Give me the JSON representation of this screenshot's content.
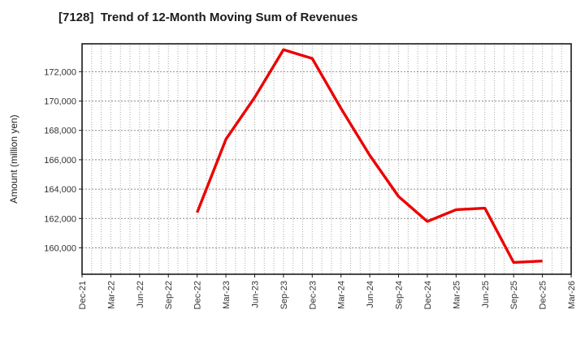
{
  "title": "[7128]  Trend of 12-Month Moving Sum of Revenues",
  "chart_data": {
    "type": "line",
    "title": "[7128]  Trend of 12-Month Moving Sum of Revenues",
    "xlabel": "",
    "ylabel": "Amount (million yen)",
    "grid": true,
    "legend": "none",
    "line_color": "#ec0000",
    "x_tick_labels": [
      "Dec-21",
      "Mar-22",
      "Jun-22",
      "Sep-22",
      "Dec-22",
      "Mar-23",
      "Jun-23",
      "Sep-23",
      "Dec-23",
      "Mar-24",
      "Jun-24",
      "Sep-24",
      "Dec-24",
      "Mar-25",
      "Jun-25",
      "Sep-25",
      "Dec-25",
      "Mar-26"
    ],
    "x_axis_months_total": 51,
    "y_ticks": [
      160000,
      162000,
      164000,
      166000,
      168000,
      170000,
      172000
    ],
    "y_tick_labels": [
      "160,000",
      "162,000",
      "164,000",
      "166,000",
      "168,000",
      "170,000",
      "172,000"
    ],
    "ylim": [
      158200,
      173900
    ],
    "series": [
      {
        "name": "12-Month Moving Sum of Revenues",
        "point_labels": [
          "Dec-22",
          "Mar-23",
          "Jun-23",
          "Sep-23",
          "Dec-23",
          "Mar-24",
          "Jun-24",
          "Sep-24",
          "Dec-24",
          "Mar-25",
          "Jun-25",
          "Sep-25",
          "Dec-25"
        ],
        "month_index": [
          12,
          15,
          18,
          21,
          24,
          27,
          30,
          33,
          36,
          39,
          42,
          45,
          48
        ],
        "values": [
          162400,
          167400,
          170250,
          173500,
          172900,
          169500,
          166300,
          163500,
          161800,
          162600,
          162700,
          159000,
          159100
        ]
      }
    ]
  }
}
